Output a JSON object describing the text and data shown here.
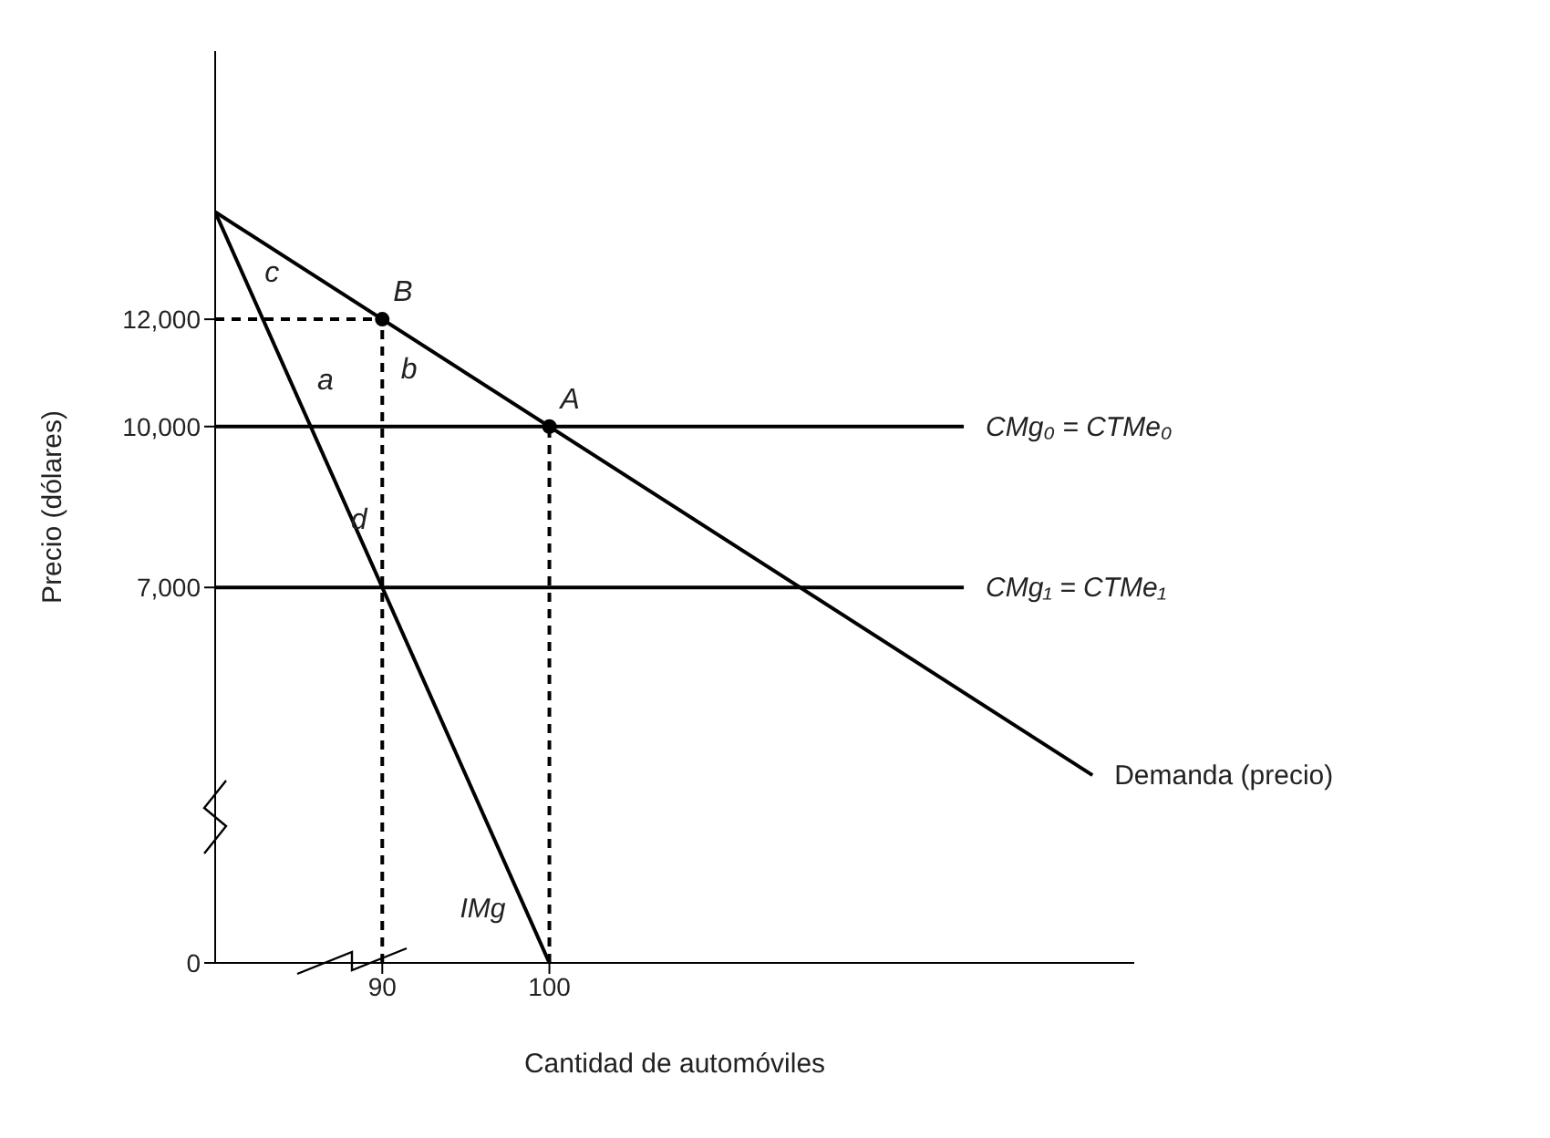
{
  "chart_data": {
    "type": "line",
    "xlabel": "Cantidad de automóviles",
    "ylabel": "Precio (dólares)",
    "xlim": [
      80,
      135
    ],
    "ylim": [
      0,
      17000
    ],
    "xticks": [
      90,
      100
    ],
    "yticks": [
      0,
      {
        "value": 7000,
        "label": "7,000"
      },
      {
        "value": 10000,
        "label": "10,000"
      },
      {
        "value": 12000,
        "label": "12,000"
      }
    ],
    "series": [
      {
        "name": "Demanda (precio)",
        "color": "#000000",
        "x": [
          80,
          132.5
        ],
        "values": [
          14000,
          3500
        ]
      },
      {
        "name": "IMg",
        "color": "#000000",
        "x": [
          80,
          100
        ],
        "values": [
          14000,
          0
        ]
      },
      {
        "name": "CMg₀ = CTMe₀",
        "color": "#000000",
        "x": [
          80,
          124.8
        ],
        "values": [
          10000,
          10000
        ]
      },
      {
        "name": "CMg₁ = CTMe₁",
        "color": "#000000",
        "x": [
          80,
          124.8
        ],
        "values": [
          7000,
          7000
        ]
      },
      {
        "color": "#000000",
        "line_style": "dashed",
        "x": [
          80,
          90
        ],
        "values": [
          12000,
          12000
        ]
      },
      {
        "color": "#000000",
        "line_style": "dashed",
        "x": [
          90,
          90
        ],
        "values": [
          0,
          12000
        ]
      },
      {
        "color": "#000000",
        "line_style": "dashed",
        "x": [
          100,
          100
        ],
        "values": [
          0,
          10000
        ]
      },
      {
        "type": "scatter",
        "color": "#000000",
        "marker": "circle",
        "x": [
          90,
          100
        ],
        "values": [
          12000,
          10000
        ]
      }
    ],
    "annotations": [
      {
        "text": "B",
        "x": 90,
        "y": 12000
      },
      {
        "text": "A",
        "x": 100,
        "y": 10000
      },
      "c",
      "a",
      "b",
      "d"
    ]
  }
}
